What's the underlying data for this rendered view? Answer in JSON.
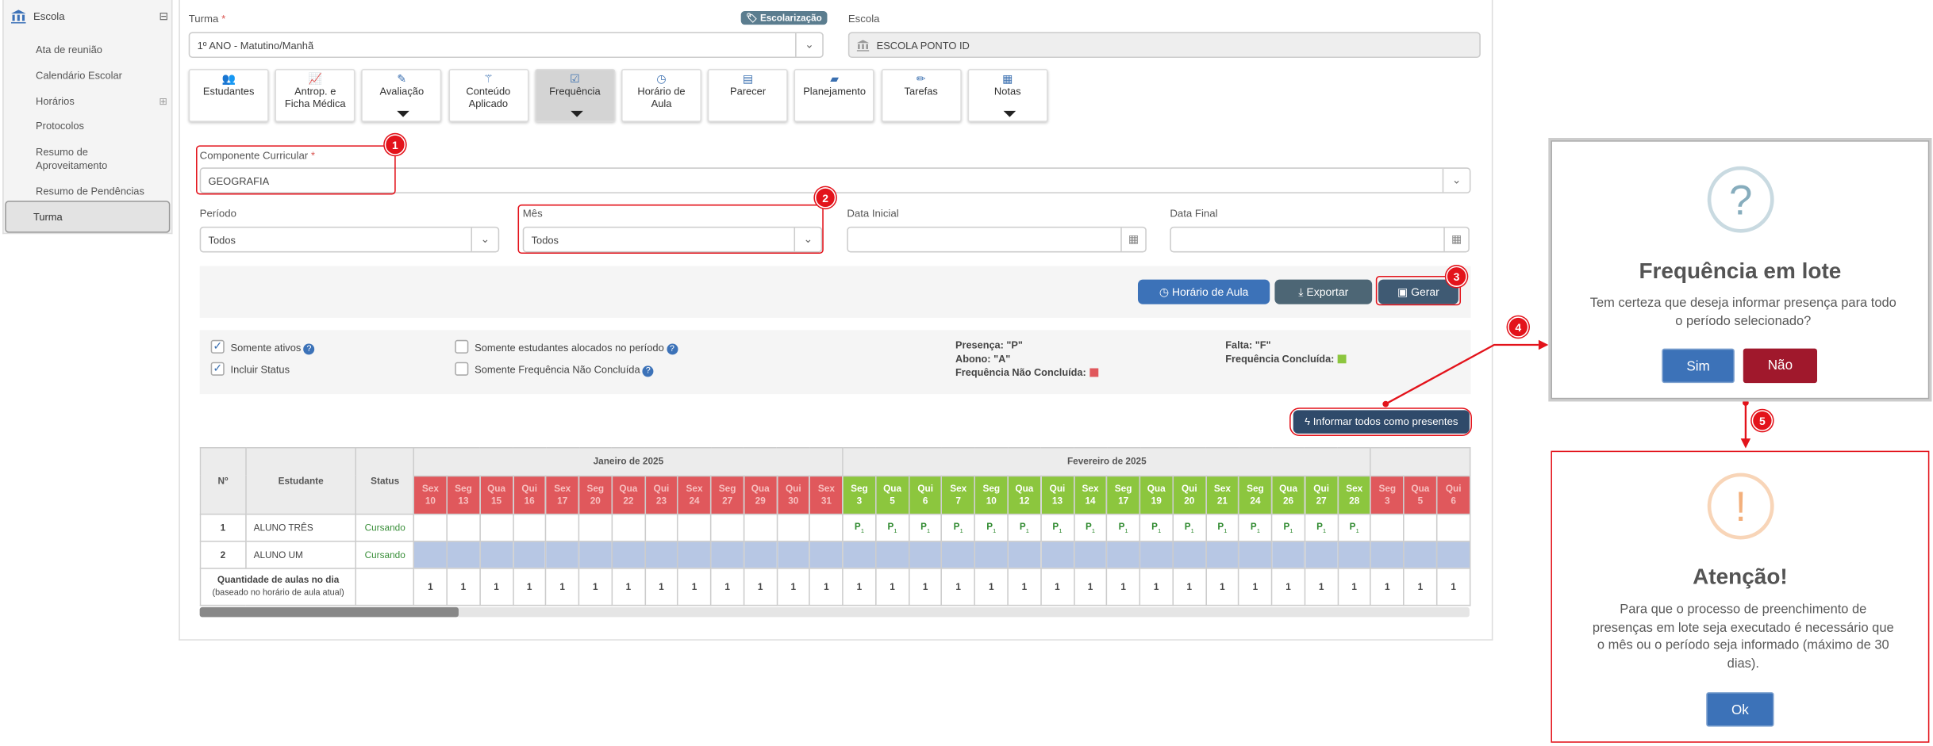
{
  "sidebar": {
    "header": "Escola",
    "toggle": "⊟",
    "items": [
      {
        "label": "Ata de reunião"
      },
      {
        "label": "Calendário Escolar"
      },
      {
        "label": "Horários"
      },
      {
        "label": "Protocolos"
      },
      {
        "label": "Resumo de Aproveitamento"
      },
      {
        "label": "Resumo de Pendências"
      },
      {
        "label": "Turma"
      }
    ]
  },
  "form": {
    "turma_label": "Turma",
    "required_mark": "*",
    "turma_value": "1º ANO - Matutino/Manhã",
    "escolarizacao_badge": "Escolarização",
    "escola_label": "Escola",
    "escola_value": "ESCOLA PONTO ID",
    "componente_label": "Componente Curricular",
    "componente_value": "GEOGRAFIA",
    "periodo_label": "Período",
    "periodo_value": "Todos",
    "mes_label": "Mês",
    "mes_value": "Todos",
    "data_inicial_label": "Data Inicial",
    "data_final_label": "Data Final"
  },
  "tabs": [
    {
      "l1": "Estudantes",
      "l2": "",
      "icon": "users-icon"
    },
    {
      "l1": "Antrop. e",
      "l2": "Ficha Médica",
      "icon": "chart-icon"
    },
    {
      "l1": "Avaliação",
      "l2": "",
      "icon": "edit-icon"
    },
    {
      "l1": "Conteúdo",
      "l2": "Aplicado",
      "icon": "wand-icon"
    },
    {
      "l1": "Frequência",
      "l2": "",
      "icon": "check-square-icon"
    },
    {
      "l1": "Horário de",
      "l2": "Aula",
      "icon": "clock-icon"
    },
    {
      "l1": "Parecer",
      "l2": "",
      "icon": "file-icon"
    },
    {
      "l1": "Planejamento",
      "l2": "",
      "icon": "book-icon"
    },
    {
      "l1": "Tarefas",
      "l2": "",
      "icon": "pencil-icon"
    },
    {
      "l1": "Notas",
      "l2": "",
      "icon": "list-icon"
    }
  ],
  "actions": {
    "horario": "Horário de Aula",
    "exportar": "Exportar",
    "gerar": "Gerar",
    "informar": "Informar todos como presentes"
  },
  "filters": {
    "somente_ativos": "Somente ativos",
    "incluir_status": "Incluir Status",
    "somente_alocados": "Somente estudantes alocados no período",
    "somente_nao_concluida": "Somente Frequência Não Concluída"
  },
  "legend": {
    "presenca": "Presença: \"P\"",
    "abono": "Abono: \"A\"",
    "nao_concluida": "Frequência Não Concluída:",
    "falta": "Falta: \"F\"",
    "concluida": "Frequência Concluída:",
    "red": "#e0585c",
    "green": "#8cc63e"
  },
  "table": {
    "col_n": "Nº",
    "col_estudante": "Estudante",
    "col_status": "Status",
    "months": [
      {
        "label": "Janeiro de 2025",
        "days": [
          [
            "Sex",
            "10"
          ],
          [
            "Seg",
            "13"
          ],
          [
            "Qua",
            "15"
          ],
          [
            "Qui",
            "16"
          ],
          [
            "Sex",
            "17"
          ],
          [
            "Seg",
            "20"
          ],
          [
            "Qua",
            "22"
          ],
          [
            "Qui",
            "23"
          ],
          [
            "Sex",
            "24"
          ],
          [
            "Seg",
            "27"
          ],
          [
            "Qua",
            "29"
          ],
          [
            "Qui",
            "30"
          ],
          [
            "Sex",
            "31"
          ]
        ],
        "state": "red"
      },
      {
        "label": "Fevereiro de 2025",
        "days": [
          [
            "Seg",
            "3"
          ],
          [
            "Qua",
            "5"
          ],
          [
            "Qui",
            "6"
          ],
          [
            "Sex",
            "7"
          ],
          [
            "Seg",
            "10"
          ],
          [
            "Qua",
            "12"
          ],
          [
            "Qui",
            "13"
          ],
          [
            "Sex",
            "14"
          ],
          [
            "Seg",
            "17"
          ],
          [
            "Qua",
            "19"
          ],
          [
            "Qui",
            "20"
          ],
          [
            "Sex",
            "21"
          ],
          [
            "Seg",
            "24"
          ],
          [
            "Qua",
            "26"
          ],
          [
            "Qui",
            "27"
          ],
          [
            "Sex",
            "28"
          ]
        ],
        "state": "green"
      },
      {
        "label": "",
        "days": [
          [
            "Seg",
            "3"
          ],
          [
            "Qua",
            "5"
          ],
          [
            "Qui",
            "6"
          ]
        ],
        "state": "red"
      }
    ],
    "rows": [
      {
        "n": "1",
        "name": "ALUNO TRÊS",
        "status": "Cursando",
        "mark": "P"
      },
      {
        "n": "2",
        "name": "ALUNO UM",
        "status": "Cursando",
        "mark": ""
      }
    ],
    "footer_label": "Quantidade de aulas no dia",
    "footer_sub": "(baseado no horário de aula atual)",
    "lessons_per_day": "1"
  },
  "dialog1": {
    "icon": "?",
    "title": "Frequência em lote",
    "text": "Tem certeza que deseja informar presença para todo o período selecionado?",
    "yes": "Sim",
    "no": "Não"
  },
  "dialog2": {
    "icon": "!",
    "title": "Atenção!",
    "text": "Para que o processo de preenchimento de presenças em lote seja executado é necessário que o mês ou o período seja informado (máximo de 30 dias).",
    "ok": "Ok"
  },
  "steps": [
    "1",
    "2",
    "3",
    "4",
    "5"
  ]
}
